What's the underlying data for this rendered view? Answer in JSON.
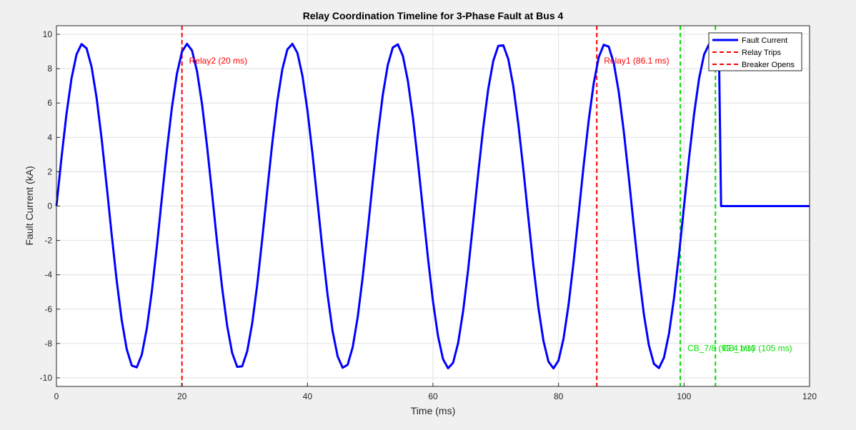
{
  "chart_data": {
    "type": "line",
    "title": "Relay Coordination Timeline for 3-Phase Fault at Bus 4",
    "xlabel": "Time (ms)",
    "ylabel": "Fault Current (kA)",
    "xlim": [
      0,
      120
    ],
    "ylim": [
      -10.5,
      10.5
    ],
    "xticks": [
      0,
      20,
      40,
      60,
      80,
      100,
      120
    ],
    "yticks": [
      -10,
      -8,
      -6,
      -4,
      -2,
      0,
      2,
      4,
      6,
      8,
      10
    ],
    "grid": true,
    "legend_position": "top-right",
    "legend": [
      "Fault Current",
      "Relay Trips",
      "Breaker Opens"
    ],
    "series": [
      {
        "name": "Fault Current",
        "color": "#0000ff",
        "waveform": {
          "amplitude_kA": 9.45,
          "frequency_hz": 60,
          "interrupt_at_ms": 105.9,
          "sample_step_ms": 0.8,
          "end_ms": 120
        }
      }
    ],
    "relay_trips": [
      {
        "label": "Relay2 (20 ms)",
        "time_ms": 20
      },
      {
        "label": "Relay1 (86.1 ms)",
        "time_ms": 86.1
      }
    ],
    "breaker_opens": [
      {
        "label": "CB_7/8 (99.4 ms)",
        "time_ms": 99.4
      },
      {
        "label": "CB_1/10 (105 ms)",
        "time_ms": 105
      }
    ],
    "colors": {
      "fault_current": "#0000ff",
      "relay_trips": "#ff0000",
      "breaker_opens": "#00dd00",
      "grid": "#e0e0e0",
      "axes_bg": "#ffffff",
      "figure_bg": "#f0f0f0"
    }
  }
}
